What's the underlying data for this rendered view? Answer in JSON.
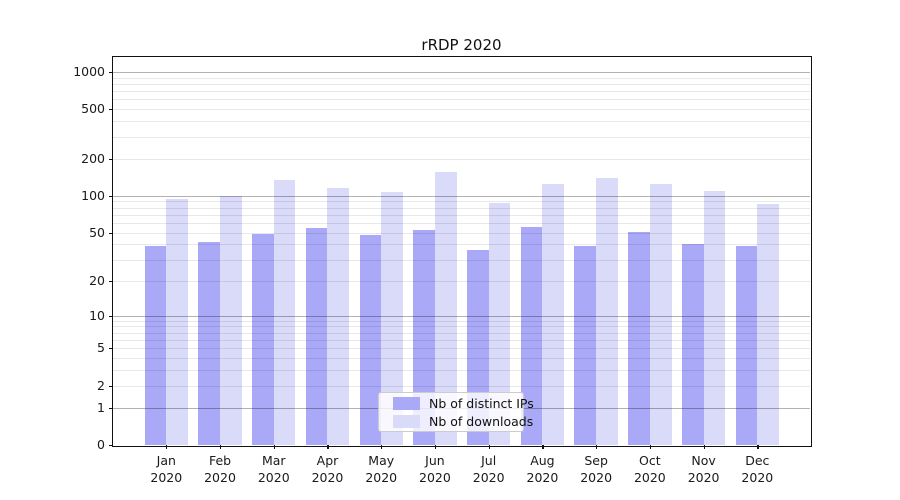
{
  "title": "rRDP 2020",
  "chart_data": {
    "type": "bar",
    "title": "rRDP 2020",
    "categories": [
      "Jan 2020",
      "Feb 2020",
      "Mar 2020",
      "Apr 2020",
      "May 2020",
      "Jun 2020",
      "Jul 2020",
      "Aug 2020",
      "Sep 2020",
      "Oct 2020",
      "Nov 2020",
      "Dec 2020"
    ],
    "series": [
      {
        "name": "Nb of distinct IPs",
        "color": "#a9a9f7",
        "values": [
          39,
          42,
          49,
          55,
          48,
          53,
          36,
          56,
          39,
          51,
          40,
          39
        ]
      },
      {
        "name": "Nb of downloads",
        "color": "#dadaf9",
        "values": [
          94,
          100,
          134,
          116,
          108,
          156,
          87,
          124,
          140,
          125,
          110,
          86
        ]
      }
    ],
    "xlabel": "",
    "ylabel": "",
    "yscale": "symlog (linear 0-1, log above)",
    "yticks": [
      0,
      1,
      2,
      5,
      10,
      20,
      50,
      100,
      200,
      500,
      1000
    ],
    "ylim": [
      0,
      1280
    ],
    "grid": "horizontal, major decade lines dark + minor log lines light, drawn over bars",
    "legend_position": "lower center, inside axes"
  },
  "legend": {
    "items": [
      {
        "label": "Nb of distinct IPs",
        "color": "#a9a9f7"
      },
      {
        "label": "Nb of downloads",
        "color": "#dadaf9"
      }
    ]
  }
}
